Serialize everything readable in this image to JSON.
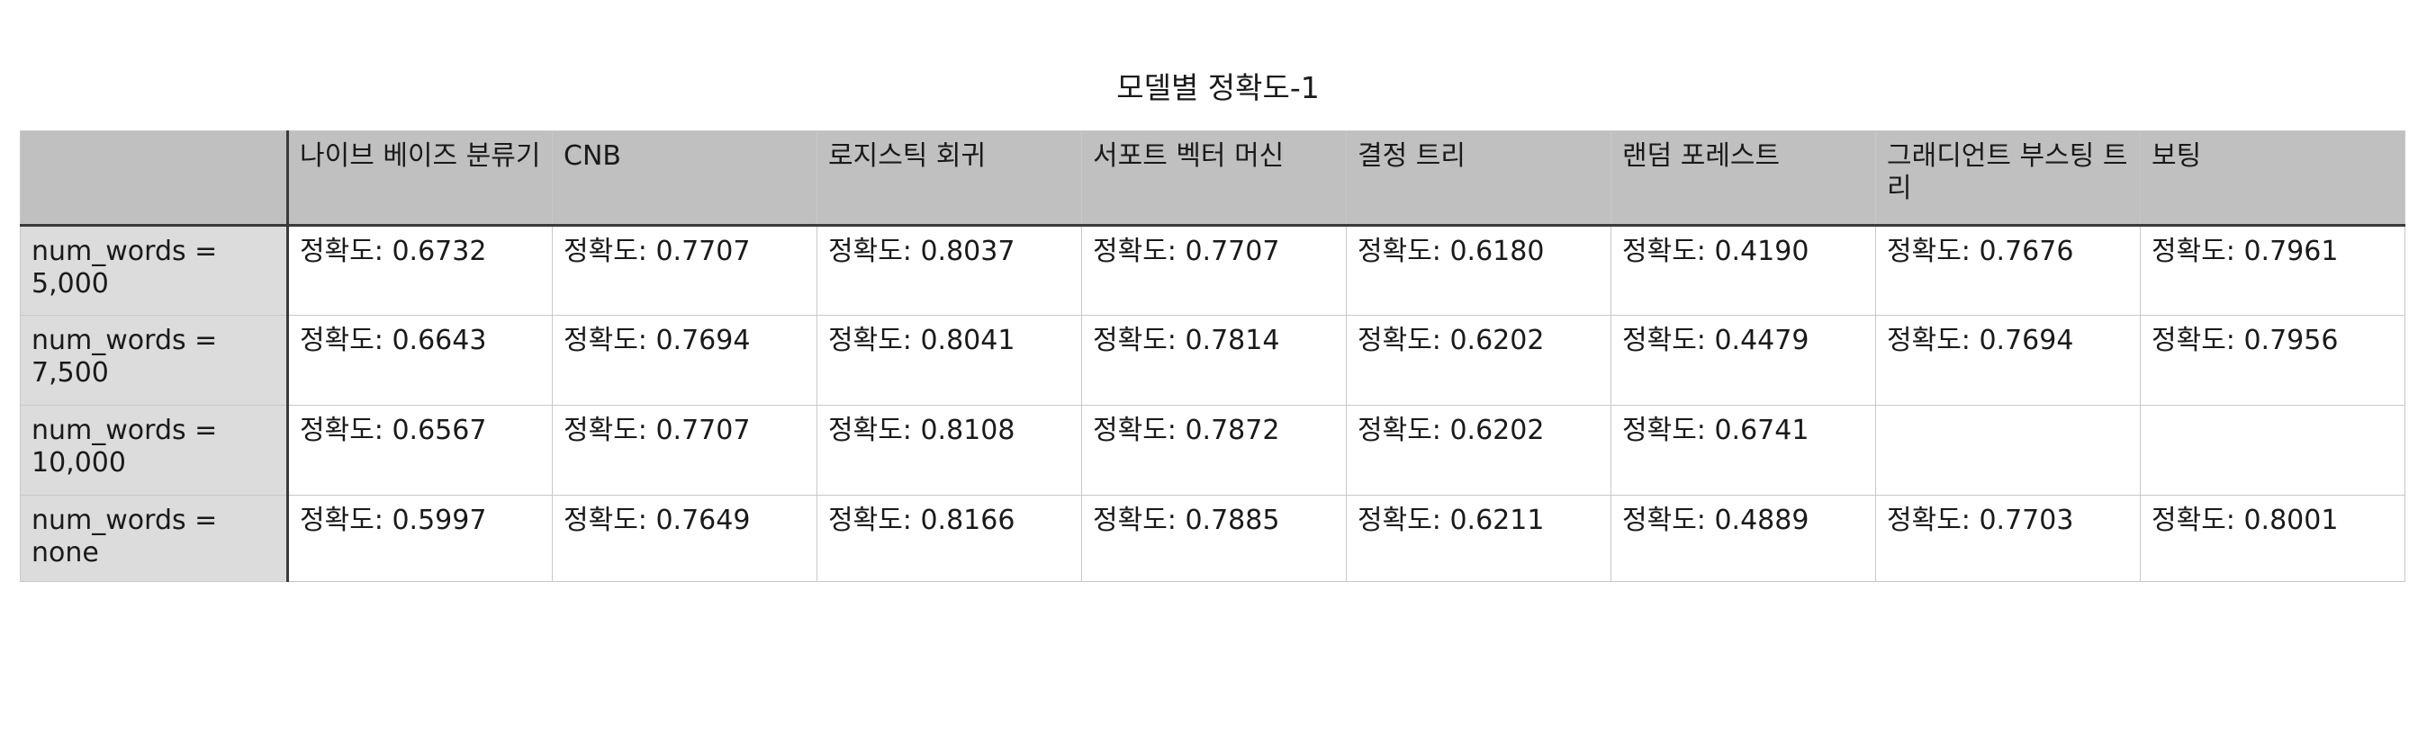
{
  "title": "모델별 정확도-1",
  "columns": [
    "나이브 베이즈 분류기",
    "CNB",
    "로지스틱 회귀",
    "서포트 벡터 머신",
    "결정 트리",
    "랜덤 포레스트",
    "그래디언트 부스팅 트리",
    "보팅"
  ],
  "rows": [
    {
      "label": "num_words = 5,000",
      "cells": [
        "정확도: 0.6732",
        "정확도: 0.7707",
        "정확도: 0.8037",
        "정확도: 0.7707",
        "정확도: 0.6180",
        "정확도: 0.4190",
        "정확도: 0.7676",
        "정확도: 0.7961"
      ]
    },
    {
      "label": "num_words = 7,500",
      "cells": [
        "정확도: 0.6643",
        "정확도: 0.7694",
        "정확도: 0.8041",
        "정확도: 0.7814",
        "정확도: 0.6202",
        "정확도: 0.4479",
        "정확도: 0.7694",
        "정확도: 0.7956"
      ]
    },
    {
      "label": "num_words = 10,000",
      "cells": [
        "정확도: 0.6567",
        "정확도: 0.7707",
        "정확도: 0.8108",
        "정확도: 0.7872",
        "정확도: 0.6202",
        "정확도: 0.6741",
        "",
        ""
      ]
    },
    {
      "label": "num_words = none",
      "cells": [
        "정확도: 0.5997",
        "정확도: 0.7649",
        "정확도: 0.8166",
        "정확도: 0.7885",
        "정확도: 0.6211",
        "정확도: 0.4889",
        "정확도: 0.7703",
        "정확도: 0.8001"
      ]
    }
  ]
}
